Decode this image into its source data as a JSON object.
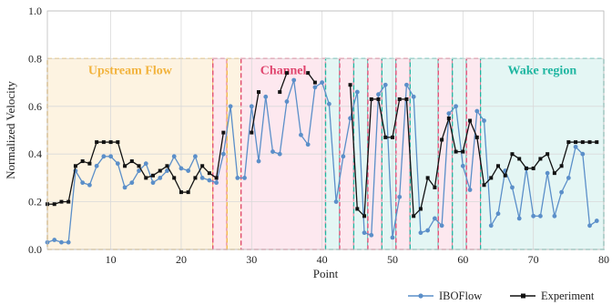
{
  "chart_data": {
    "type": "line",
    "xlabel": "Point",
    "ylabel": "Normalized Velocity",
    "xlim": [
      1,
      80
    ],
    "ylim": [
      0.0,
      1.0
    ],
    "xticks": [
      10,
      20,
      30,
      40,
      50,
      60,
      70,
      80
    ],
    "yticks": [
      0.0,
      0.2,
      0.4,
      0.6,
      0.8,
      1.0
    ],
    "ytick_labels": [
      "0.0",
      "0.2",
      "0.4",
      "0.6",
      "0.8",
      "1.0"
    ],
    "grid": true,
    "legend_position": "bottom-right",
    "regions": [
      {
        "label": "Upstream Flow",
        "x0": 1,
        "x1": 24.5,
        "fill": "#fdf1dc",
        "stroke": "#f2b33d"
      },
      {
        "label": "",
        "x0": 24.5,
        "x1": 26.5,
        "fill": "#fde4ec",
        "stroke": "#e0456e"
      },
      {
        "label": "",
        "x0": 26.5,
        "x1": 28.5,
        "fill": "#fdf1dc",
        "stroke": "#f2b33d"
      },
      {
        "label": "Channel",
        "x0": 28.5,
        "x1": 40.5,
        "fill": "#fde4ec",
        "stroke": "#e0456e"
      },
      {
        "label": "",
        "x0": 40.5,
        "x1": 42.5,
        "fill": "#dff5f2",
        "stroke": "#1fb6a1"
      },
      {
        "label": "",
        "x0": 42.5,
        "x1": 44.5,
        "fill": "#fde4ec",
        "stroke": "#e0456e"
      },
      {
        "label": "",
        "x0": 44.5,
        "x1": 46.5,
        "fill": "#dff5f2",
        "stroke": "#1fb6a1"
      },
      {
        "label": "",
        "x0": 46.5,
        "x1": 48.5,
        "fill": "#fde4ec",
        "stroke": "#e0456e"
      },
      {
        "label": "",
        "x0": 48.5,
        "x1": 50.5,
        "fill": "#dff5f2",
        "stroke": "#1fb6a1"
      },
      {
        "label": "",
        "x0": 50.5,
        "x1": 52.5,
        "fill": "#fde4ec",
        "stroke": "#e0456e"
      },
      {
        "label": "",
        "x0": 52.5,
        "x1": 56.5,
        "fill": "#dff5f2",
        "stroke": "#1fb6a1"
      },
      {
        "label": "",
        "x0": 56.5,
        "x1": 58.5,
        "fill": "#fde4ec",
        "stroke": "#e0456e"
      },
      {
        "label": "",
        "x0": 58.5,
        "x1": 60.5,
        "fill": "#dff5f2",
        "stroke": "#1fb6a1"
      },
      {
        "label": "",
        "x0": 60.5,
        "x1": 62.5,
        "fill": "#fde4ec",
        "stroke": "#e0456e"
      },
      {
        "label": "Wake region",
        "x0": 62.5,
        "x1": 80,
        "fill": "#dff5f2",
        "stroke": "#1fb6a1"
      }
    ],
    "series": [
      {
        "name": "IBOFlow",
        "color": "#5b8fc9",
        "marker": "circle",
        "x": [
          1,
          2,
          3,
          4,
          5,
          6,
          7,
          8,
          9,
          10,
          11,
          12,
          13,
          14,
          15,
          16,
          17,
          18,
          19,
          20,
          21,
          22,
          23,
          24,
          25,
          26,
          27,
          28,
          29,
          30,
          31,
          32,
          33,
          34,
          35,
          36,
          37,
          38,
          39,
          40,
          41,
          42,
          43,
          44,
          45,
          46,
          47,
          48,
          49,
          50,
          51,
          52,
          53,
          54,
          55,
          56,
          57,
          58,
          59,
          60,
          61,
          62,
          63,
          64,
          65,
          66,
          67,
          68,
          69,
          70,
          71,
          72,
          73,
          74,
          75,
          76,
          77,
          78,
          79
        ],
        "values": [
          0.03,
          0.04,
          0.03,
          0.03,
          0.33,
          0.28,
          0.27,
          0.35,
          0.39,
          0.39,
          0.36,
          0.26,
          0.28,
          0.33,
          0.36,
          0.28,
          0.3,
          0.33,
          0.39,
          0.34,
          0.33,
          0.39,
          0.3,
          0.29,
          0.28,
          0.4,
          0.6,
          0.3,
          0.3,
          0.6,
          0.37,
          0.64,
          0.41,
          0.4,
          0.62,
          0.71,
          0.48,
          0.44,
          0.68,
          0.7,
          0.61,
          0.2,
          0.39,
          0.55,
          0.66,
          0.07,
          0.06,
          0.65,
          0.69,
          0.05,
          0.22,
          0.69,
          0.64,
          0.07,
          0.08,
          0.13,
          0.1,
          0.57,
          0.6,
          0.35,
          0.25,
          0.58,
          0.54,
          0.1,
          0.15,
          0.33,
          0.26,
          0.13,
          0.34,
          0.14,
          0.14,
          0.32,
          0.14,
          0.24,
          0.3,
          0.43,
          0.4,
          0.1,
          0.12
        ]
      },
      {
        "name": "Experiment",
        "color": "#111111",
        "marker": "square",
        "x": [
          1,
          2,
          3,
          4,
          5,
          6,
          7,
          8,
          9,
          10,
          11,
          12,
          13,
          14,
          15,
          16,
          17,
          18,
          19,
          20,
          21,
          22,
          23,
          24,
          25,
          26,
          27,
          28,
          29,
          30,
          31,
          32,
          33,
          34,
          35,
          36,
          37,
          38,
          39,
          40,
          41,
          42,
          43,
          44,
          45,
          46,
          47,
          48,
          49,
          50,
          51,
          52,
          53,
          54,
          55,
          56,
          57,
          58,
          59,
          60,
          61,
          62,
          63,
          64,
          65,
          66,
          67,
          68,
          69,
          70,
          71,
          72,
          73,
          74,
          75,
          76,
          77,
          78,
          79
        ],
        "values": [
          0.19,
          0.19,
          0.2,
          0.2,
          0.35,
          0.37,
          0.36,
          0.45,
          0.45,
          0.45,
          0.45,
          0.35,
          0.37,
          0.35,
          0.3,
          0.31,
          0.33,
          0.35,
          0.3,
          0.24,
          0.24,
          0.3,
          0.35,
          0.32,
          0.3,
          0.49,
          null,
          null,
          null,
          0.49,
          0.66,
          null,
          null,
          0.66,
          0.74,
          null,
          null,
          0.74,
          0.7,
          null,
          null,
          null,
          null,
          0.69,
          0.17,
          0.14,
          0.63,
          0.63,
          0.47,
          0.47,
          0.63,
          0.63,
          0.14,
          0.17,
          0.3,
          0.26,
          0.46,
          0.55,
          0.41,
          0.41,
          0.54,
          0.47,
          0.27,
          0.3,
          0.35,
          0.31,
          0.4,
          0.38,
          0.34,
          0.34,
          0.38,
          0.4,
          0.32,
          0.35,
          0.45,
          0.45,
          0.45,
          0.45,
          0.45
        ]
      }
    ]
  }
}
